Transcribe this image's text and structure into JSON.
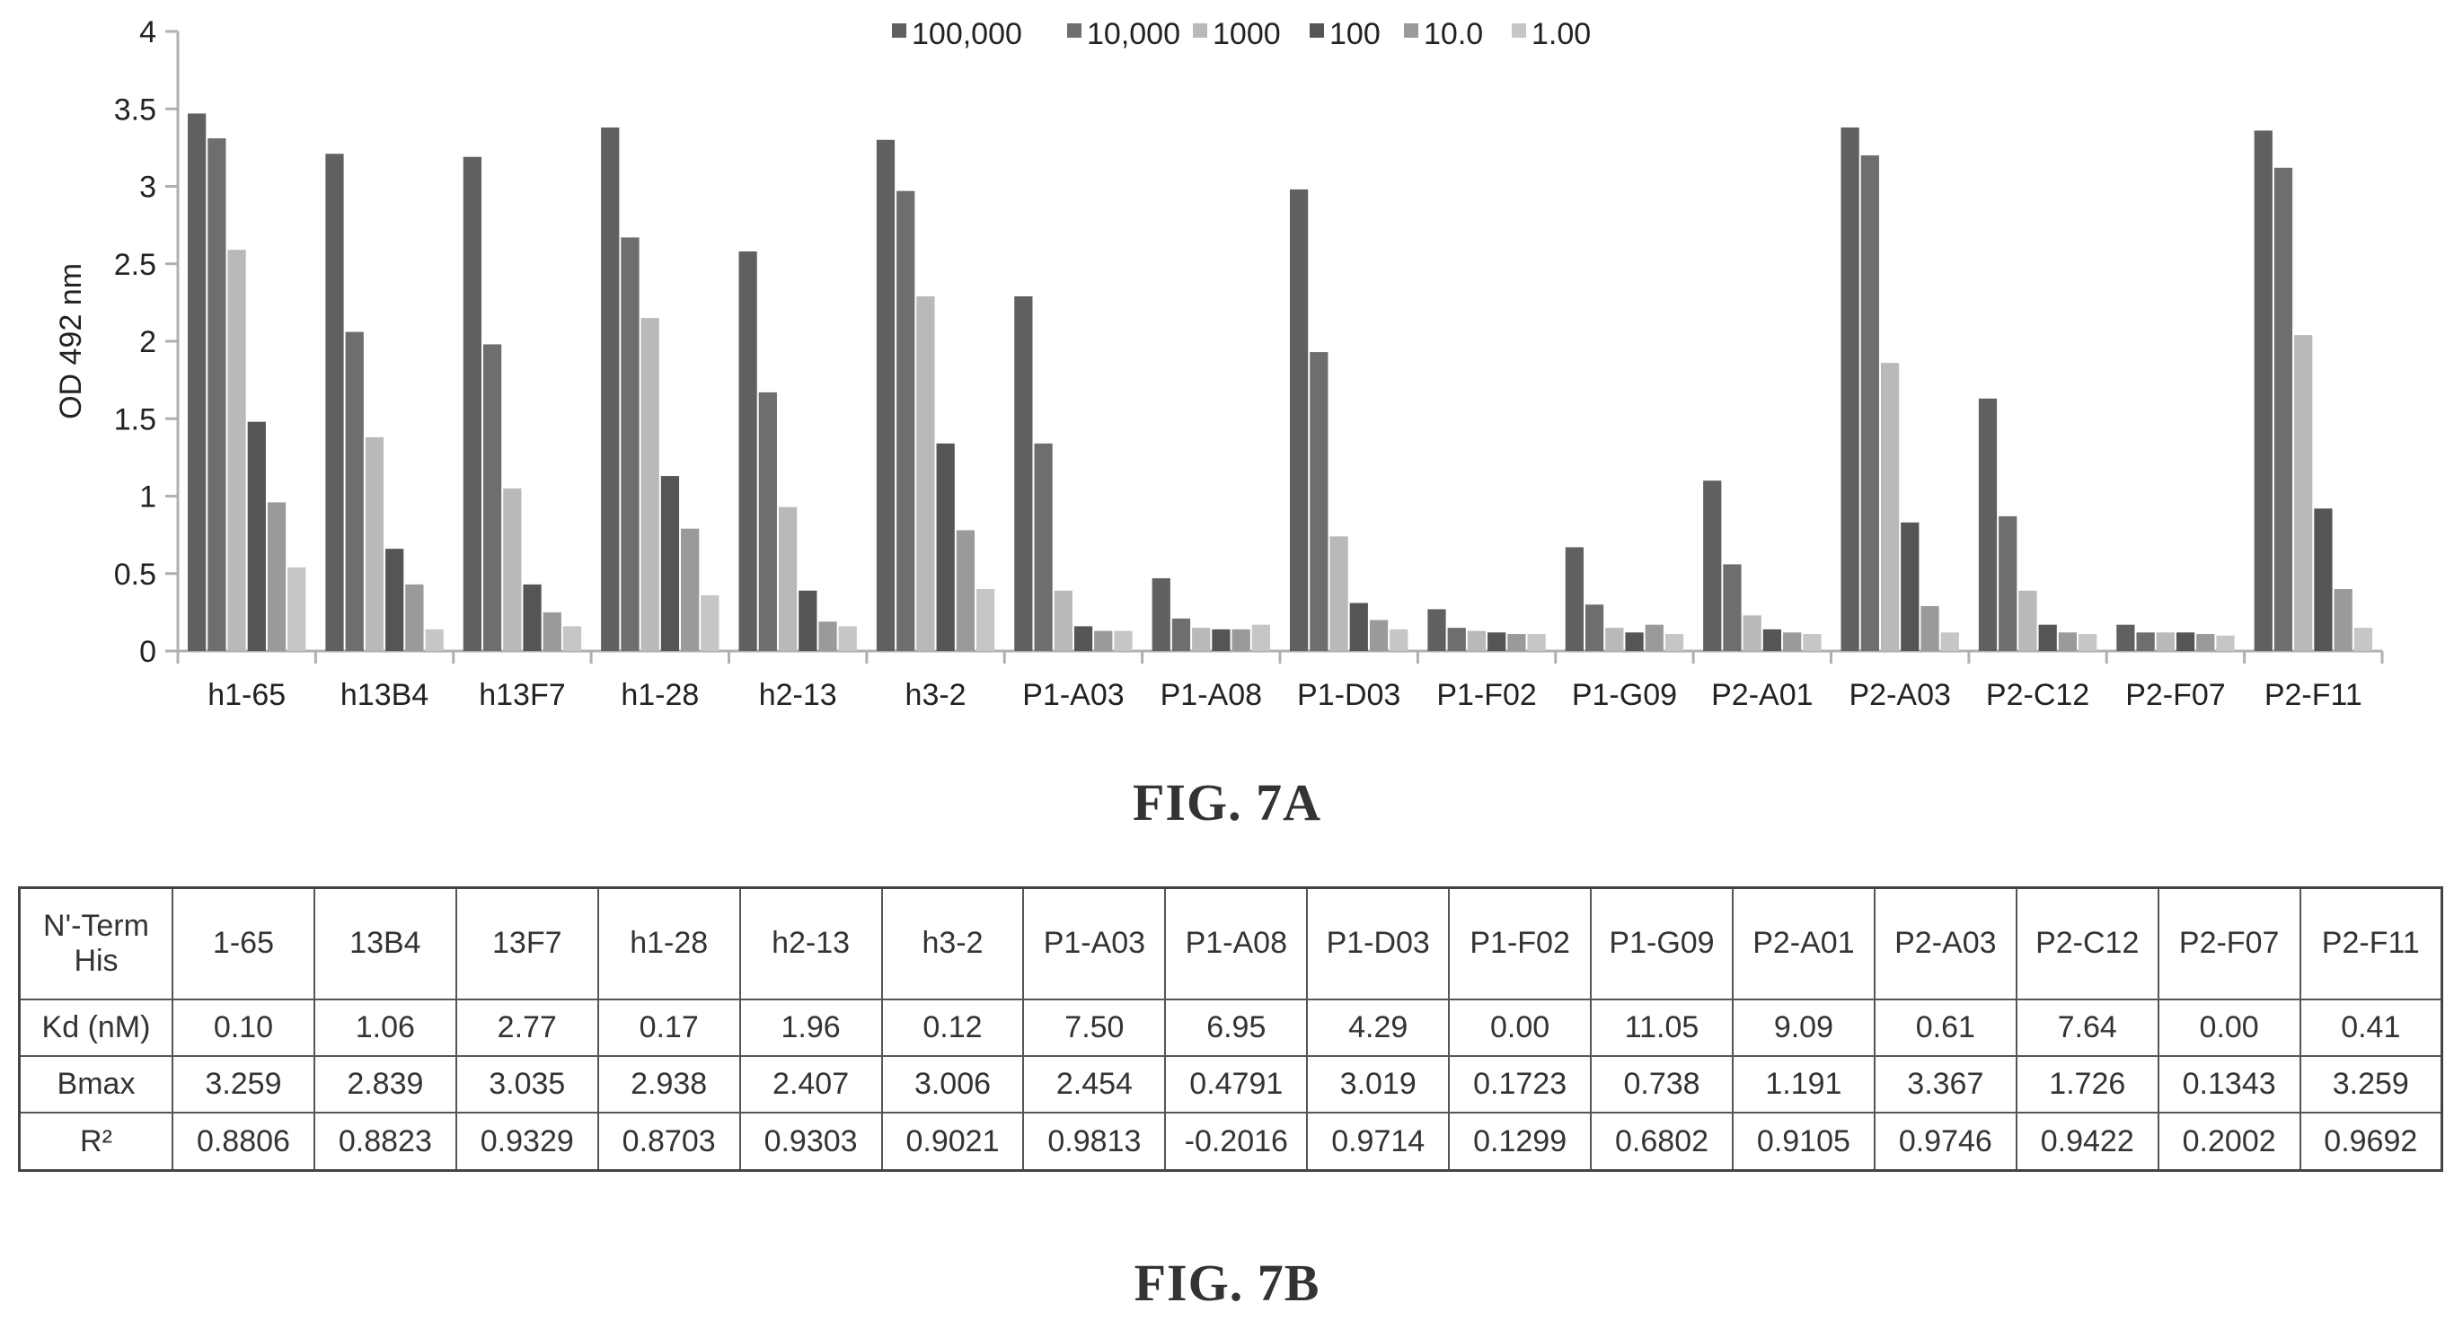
{
  "figure_a": {
    "caption": "FIG. 7A"
  },
  "figure_b": {
    "caption": "FIG. 7B"
  },
  "colors": {
    "series": [
      "#606060",
      "#6e6e6e",
      "#b9b9b9",
      "#555555",
      "#9a9a9a",
      "#c6c6c6"
    ],
    "axis": "#b0b0b0"
  },
  "chart_data": {
    "type": "bar",
    "title": "",
    "xlabel": "",
    "ylabel": "OD 492 nm",
    "ylim": [
      0,
      4
    ],
    "yticks": [
      "0",
      "0.5",
      "1",
      "1.5",
      "2",
      "2.5",
      "3",
      "3.5",
      "4"
    ],
    "grid": false,
    "legend_position": "top",
    "categories": [
      "h1-65",
      "h13B4",
      "h13F7",
      "h1-28",
      "h2-13",
      "h3-2",
      "P1-A03",
      "P1-A08",
      "P1-D03",
      "P1-F02",
      "P1-G09",
      "P2-A01",
      "P2-A03",
      "P2-C12",
      "P2-F07",
      "P2-F11"
    ],
    "series": [
      {
        "name": "100,000",
        "values": [
          3.47,
          3.21,
          3.19,
          3.38,
          2.58,
          3.3,
          2.29,
          0.47,
          2.98,
          0.27,
          0.67,
          1.1,
          3.38,
          1.63,
          0.17,
          3.36
        ]
      },
      {
        "name": "10,000",
        "values": [
          3.31,
          2.06,
          1.98,
          2.67,
          1.67,
          2.97,
          1.34,
          0.21,
          1.93,
          0.15,
          0.3,
          0.56,
          3.2,
          0.87,
          0.12,
          3.12
        ]
      },
      {
        "name": "1000",
        "values": [
          2.59,
          1.38,
          1.05,
          2.15,
          0.93,
          2.29,
          0.39,
          0.15,
          0.74,
          0.13,
          0.15,
          0.23,
          1.86,
          0.39,
          0.12,
          2.04
        ]
      },
      {
        "name": "100",
        "values": [
          1.48,
          0.66,
          0.43,
          1.13,
          0.39,
          1.34,
          0.16,
          0.14,
          0.31,
          0.12,
          0.12,
          0.14,
          0.83,
          0.17,
          0.12,
          0.92
        ]
      },
      {
        "name": "10.0",
        "values": [
          0.96,
          0.43,
          0.25,
          0.79,
          0.19,
          0.78,
          0.13,
          0.14,
          0.2,
          0.11,
          0.17,
          0.12,
          0.29,
          0.12,
          0.11,
          0.4
        ]
      },
      {
        "name": "1.00",
        "values": [
          0.54,
          0.14,
          0.16,
          0.36,
          0.16,
          0.4,
          0.13,
          0.17,
          0.14,
          0.11,
          0.11,
          0.11,
          0.12,
          0.11,
          0.1,
          0.15
        ]
      }
    ]
  },
  "table_b": {
    "header_label": "N'-Term His",
    "columns": [
      "1-65",
      "13B4",
      "13F7",
      "h1-28",
      "h2-13",
      "h3-2",
      "P1-A03",
      "P1-A08",
      "P1-D03",
      "P1-F02",
      "P1-G09",
      "P2-A01",
      "P2-A03",
      "P2-C12",
      "P2-F07",
      "P2-F11"
    ],
    "rows": [
      {
        "label": "Kd (nM)",
        "values": [
          "0.10",
          "1.06",
          "2.77",
          "0.17",
          "1.96",
          "0.12",
          "7.50",
          "6.95",
          "4.29",
          "0.00",
          "11.05",
          "9.09",
          "0.61",
          "7.64",
          "0.00",
          "0.41"
        ]
      },
      {
        "label": "Bmax",
        "values": [
          "3.259",
          "2.839",
          "3.035",
          "2.938",
          "2.407",
          "3.006",
          "2.454",
          "0.4791",
          "3.019",
          "0.1723",
          "0.738",
          "1.191",
          "3.367",
          "1.726",
          "0.1343",
          "3.259"
        ]
      },
      {
        "label": "R²",
        "values": [
          "0.8806",
          "0.8823",
          "0.9329",
          "0.8703",
          "0.9303",
          "0.9021",
          "0.9813",
          "-0.2016",
          "0.9714",
          "0.1299",
          "0.6802",
          "0.9105",
          "0.9746",
          "0.9422",
          "0.2002",
          "0.9692"
        ]
      }
    ]
  }
}
